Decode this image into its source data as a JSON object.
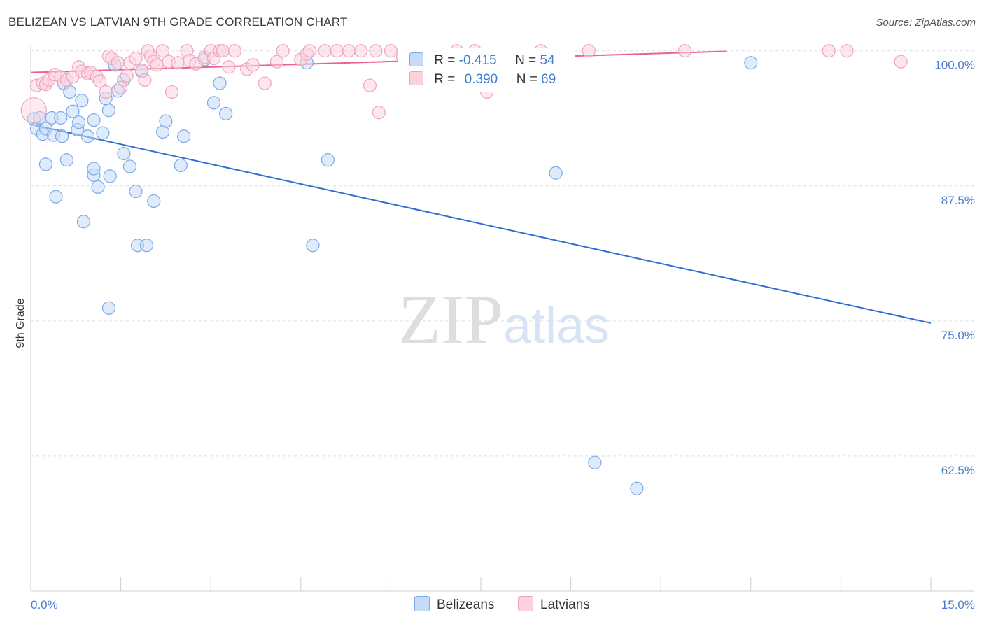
{
  "chart_data": {
    "type": "scatter",
    "title": "BELIZEAN VS LATVIAN 9TH GRADE CORRELATION CHART",
    "source": "Source: ZipAtlas.com",
    "watermark": "ZIPatlas",
    "xlabel": "",
    "ylabel": "9th Grade",
    "xlim": [
      0.0,
      15.0
    ],
    "ylim": [
      50.0,
      100.5
    ],
    "x_tick_labels": [
      "0.0%",
      "15.0%"
    ],
    "y_ticks": [
      {
        "value": 100.0,
        "label": "100.0%"
      },
      {
        "value": 87.5,
        "label": "87.5%"
      },
      {
        "value": 75.0,
        "label": "75.0%"
      },
      {
        "value": 62.5,
        "label": "62.5%"
      }
    ],
    "grid": true,
    "legend": {
      "position": "top-center",
      "rows": [
        {
          "series": "Belizeans",
          "r_label": "R =",
          "r_value": "-0.415",
          "n_label": "N =",
          "n_value": "54"
        },
        {
          "series": "Latvians",
          "r_label": "R =",
          "r_value": "0.390",
          "n_label": "N =",
          "n_value": "69"
        }
      ]
    },
    "series": [
      {
        "name": "Belizeans",
        "color": "#7aaae8",
        "fill": "#c5dbf7",
        "line_color": "#2f6fd1",
        "trend": {
          "x": [
            0.0,
            15.0
          ],
          "y": [
            93.2,
            74.8
          ]
        },
        "points": [
          [
            0.05,
            93.7
          ],
          [
            0.1,
            92.8
          ],
          [
            0.15,
            93.8
          ],
          [
            0.2,
            92.3
          ],
          [
            0.25,
            92.8
          ],
          [
            0.35,
            93.8
          ],
          [
            0.38,
            92.2
          ],
          [
            0.5,
            93.8
          ],
          [
            0.52,
            92.1
          ],
          [
            0.55,
            97.0
          ],
          [
            0.6,
            89.9
          ],
          [
            0.65,
            96.2
          ],
          [
            0.7,
            94.4
          ],
          [
            0.78,
            92.7
          ],
          [
            0.8,
            93.4
          ],
          [
            0.85,
            95.4
          ],
          [
            0.95,
            92.1
          ],
          [
            1.05,
            93.6
          ],
          [
            1.2,
            92.4
          ],
          [
            1.25,
            95.6
          ],
          [
            1.3,
            94.5
          ],
          [
            1.4,
            98.7
          ],
          [
            1.45,
            96.3
          ],
          [
            1.55,
            97.3
          ],
          [
            1.65,
            89.3
          ],
          [
            1.85,
            98.1
          ],
          [
            2.2,
            92.5
          ],
          [
            2.25,
            93.5
          ],
          [
            2.5,
            89.4
          ],
          [
            2.55,
            92.1
          ],
          [
            0.25,
            89.5
          ],
          [
            0.42,
            86.5
          ],
          [
            0.88,
            84.2
          ],
          [
            1.05,
            88.5
          ],
          [
            1.05,
            89.1
          ],
          [
            1.12,
            87.4
          ],
          [
            1.32,
            88.4
          ],
          [
            1.55,
            90.5
          ],
          [
            1.75,
            87.0
          ],
          [
            2.05,
            86.1
          ],
          [
            1.78,
            82.0
          ],
          [
            1.93,
            82.0
          ],
          [
            4.7,
            82.0
          ],
          [
            1.3,
            76.2
          ],
          [
            2.9,
            99.2
          ],
          [
            3.15,
            97.0
          ],
          [
            3.05,
            95.2
          ],
          [
            3.25,
            94.2
          ],
          [
            4.6,
            98.9
          ],
          [
            4.95,
            89.9
          ],
          [
            8.75,
            88.7
          ],
          [
            12.0,
            98.9
          ],
          [
            9.4,
            61.9
          ],
          [
            10.1,
            59.5
          ]
        ]
      },
      {
        "name": "Latvians",
        "color": "#f0a3bd",
        "fill": "#fbd3e0",
        "line_color": "#e8638f",
        "trend": {
          "x": [
            0.0,
            11.6
          ],
          "y": [
            98.0,
            99.95
          ]
        },
        "points": [
          [
            0.05,
            94.5
          ],
          [
            0.1,
            96.8
          ],
          [
            0.2,
            97.0
          ],
          [
            0.25,
            96.9
          ],
          [
            0.3,
            97.3
          ],
          [
            0.4,
            97.8
          ],
          [
            0.5,
            97.6
          ],
          [
            0.6,
            97.3
          ],
          [
            0.7,
            97.6
          ],
          [
            0.8,
            98.5
          ],
          [
            0.85,
            98.1
          ],
          [
            0.95,
            97.9
          ],
          [
            1.0,
            98.0
          ],
          [
            1.1,
            97.6
          ],
          [
            1.15,
            97.2
          ],
          [
            1.25,
            96.2
          ],
          [
            1.3,
            99.5
          ],
          [
            1.35,
            99.3
          ],
          [
            1.45,
            98.9
          ],
          [
            1.5,
            96.6
          ],
          [
            1.6,
            97.7
          ],
          [
            1.65,
            98.9
          ],
          [
            1.75,
            99.3
          ],
          [
            1.85,
            98.2
          ],
          [
            1.9,
            97.3
          ],
          [
            1.95,
            100.0
          ],
          [
            2.0,
            99.5
          ],
          [
            2.05,
            99.0
          ],
          [
            2.1,
            98.7
          ],
          [
            2.2,
            100.0
          ],
          [
            2.3,
            99.0
          ],
          [
            2.35,
            96.2
          ],
          [
            2.45,
            98.9
          ],
          [
            2.6,
            100.0
          ],
          [
            2.65,
            99.1
          ],
          [
            2.75,
            98.8
          ],
          [
            2.9,
            99.4
          ],
          [
            3.0,
            100.0
          ],
          [
            3.05,
            99.3
          ],
          [
            3.15,
            100.0
          ],
          [
            3.2,
            100.0
          ],
          [
            3.3,
            98.5
          ],
          [
            3.4,
            100.0
          ],
          [
            3.6,
            98.3
          ],
          [
            3.7,
            98.7
          ],
          [
            3.9,
            97.0
          ],
          [
            4.1,
            99.0
          ],
          [
            4.2,
            100.0
          ],
          [
            4.5,
            99.2
          ],
          [
            4.6,
            99.7
          ],
          [
            4.65,
            100.0
          ],
          [
            4.9,
            100.0
          ],
          [
            5.1,
            100.0
          ],
          [
            5.3,
            100.0
          ],
          [
            5.5,
            100.0
          ],
          [
            5.75,
            100.0
          ],
          [
            6.0,
            100.0
          ],
          [
            6.2,
            99.4
          ],
          [
            5.65,
            96.8
          ],
          [
            5.8,
            94.3
          ],
          [
            7.1,
            100.0
          ],
          [
            7.4,
            100.0
          ],
          [
            7.6,
            96.2
          ],
          [
            8.5,
            100.0
          ],
          [
            9.3,
            100.0
          ],
          [
            10.9,
            100.0
          ],
          [
            13.3,
            100.0
          ],
          [
            13.6,
            100.0
          ],
          [
            14.5,
            99.0
          ]
        ]
      }
    ]
  }
}
